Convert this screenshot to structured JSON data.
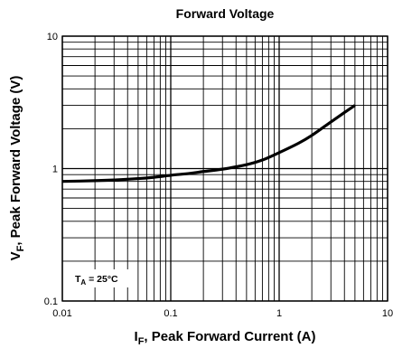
{
  "chart_data": {
    "type": "line",
    "title": "Forward Voltage",
    "xlabel": {
      "main": "I",
      "sub": "F",
      "rest": ", Peak Forward Current (A)"
    },
    "ylabel": {
      "main": "V",
      "sub": "F",
      "rest": ", Peak Forward Voltage (V)"
    },
    "x_scale": "log",
    "y_scale": "log",
    "xlim": [
      0.01,
      10
    ],
    "ylim": [
      0.1,
      10
    ],
    "x_ticks": [
      {
        "value": 0.01,
        "label": "0.01"
      },
      {
        "value": 0.1,
        "label": "0.1"
      },
      {
        "value": 1,
        "label": "1"
      },
      {
        "value": 10,
        "label": "10"
      }
    ],
    "y_ticks": [
      {
        "value": 0.1,
        "label": "0.1"
      },
      {
        "value": 1,
        "label": "1"
      },
      {
        "value": 10,
        "label": "10"
      }
    ],
    "grid": true,
    "annotation": {
      "main": "T",
      "sub": "A",
      "rest": " = 25°C"
    },
    "series": [
      {
        "x": [
          0.01,
          0.02,
          0.03,
          0.05,
          0.07,
          0.1,
          0.15,
          0.2,
          0.3,
          0.5,
          0.7,
          1.0,
          1.5,
          2.0,
          3.0,
          4.0,
          5.0
        ],
        "y": [
          0.8,
          0.81,
          0.82,
          0.84,
          0.86,
          0.89,
          0.92,
          0.95,
          0.99,
          1.07,
          1.16,
          1.32,
          1.55,
          1.78,
          2.25,
          2.65,
          3.0
        ]
      }
    ]
  }
}
